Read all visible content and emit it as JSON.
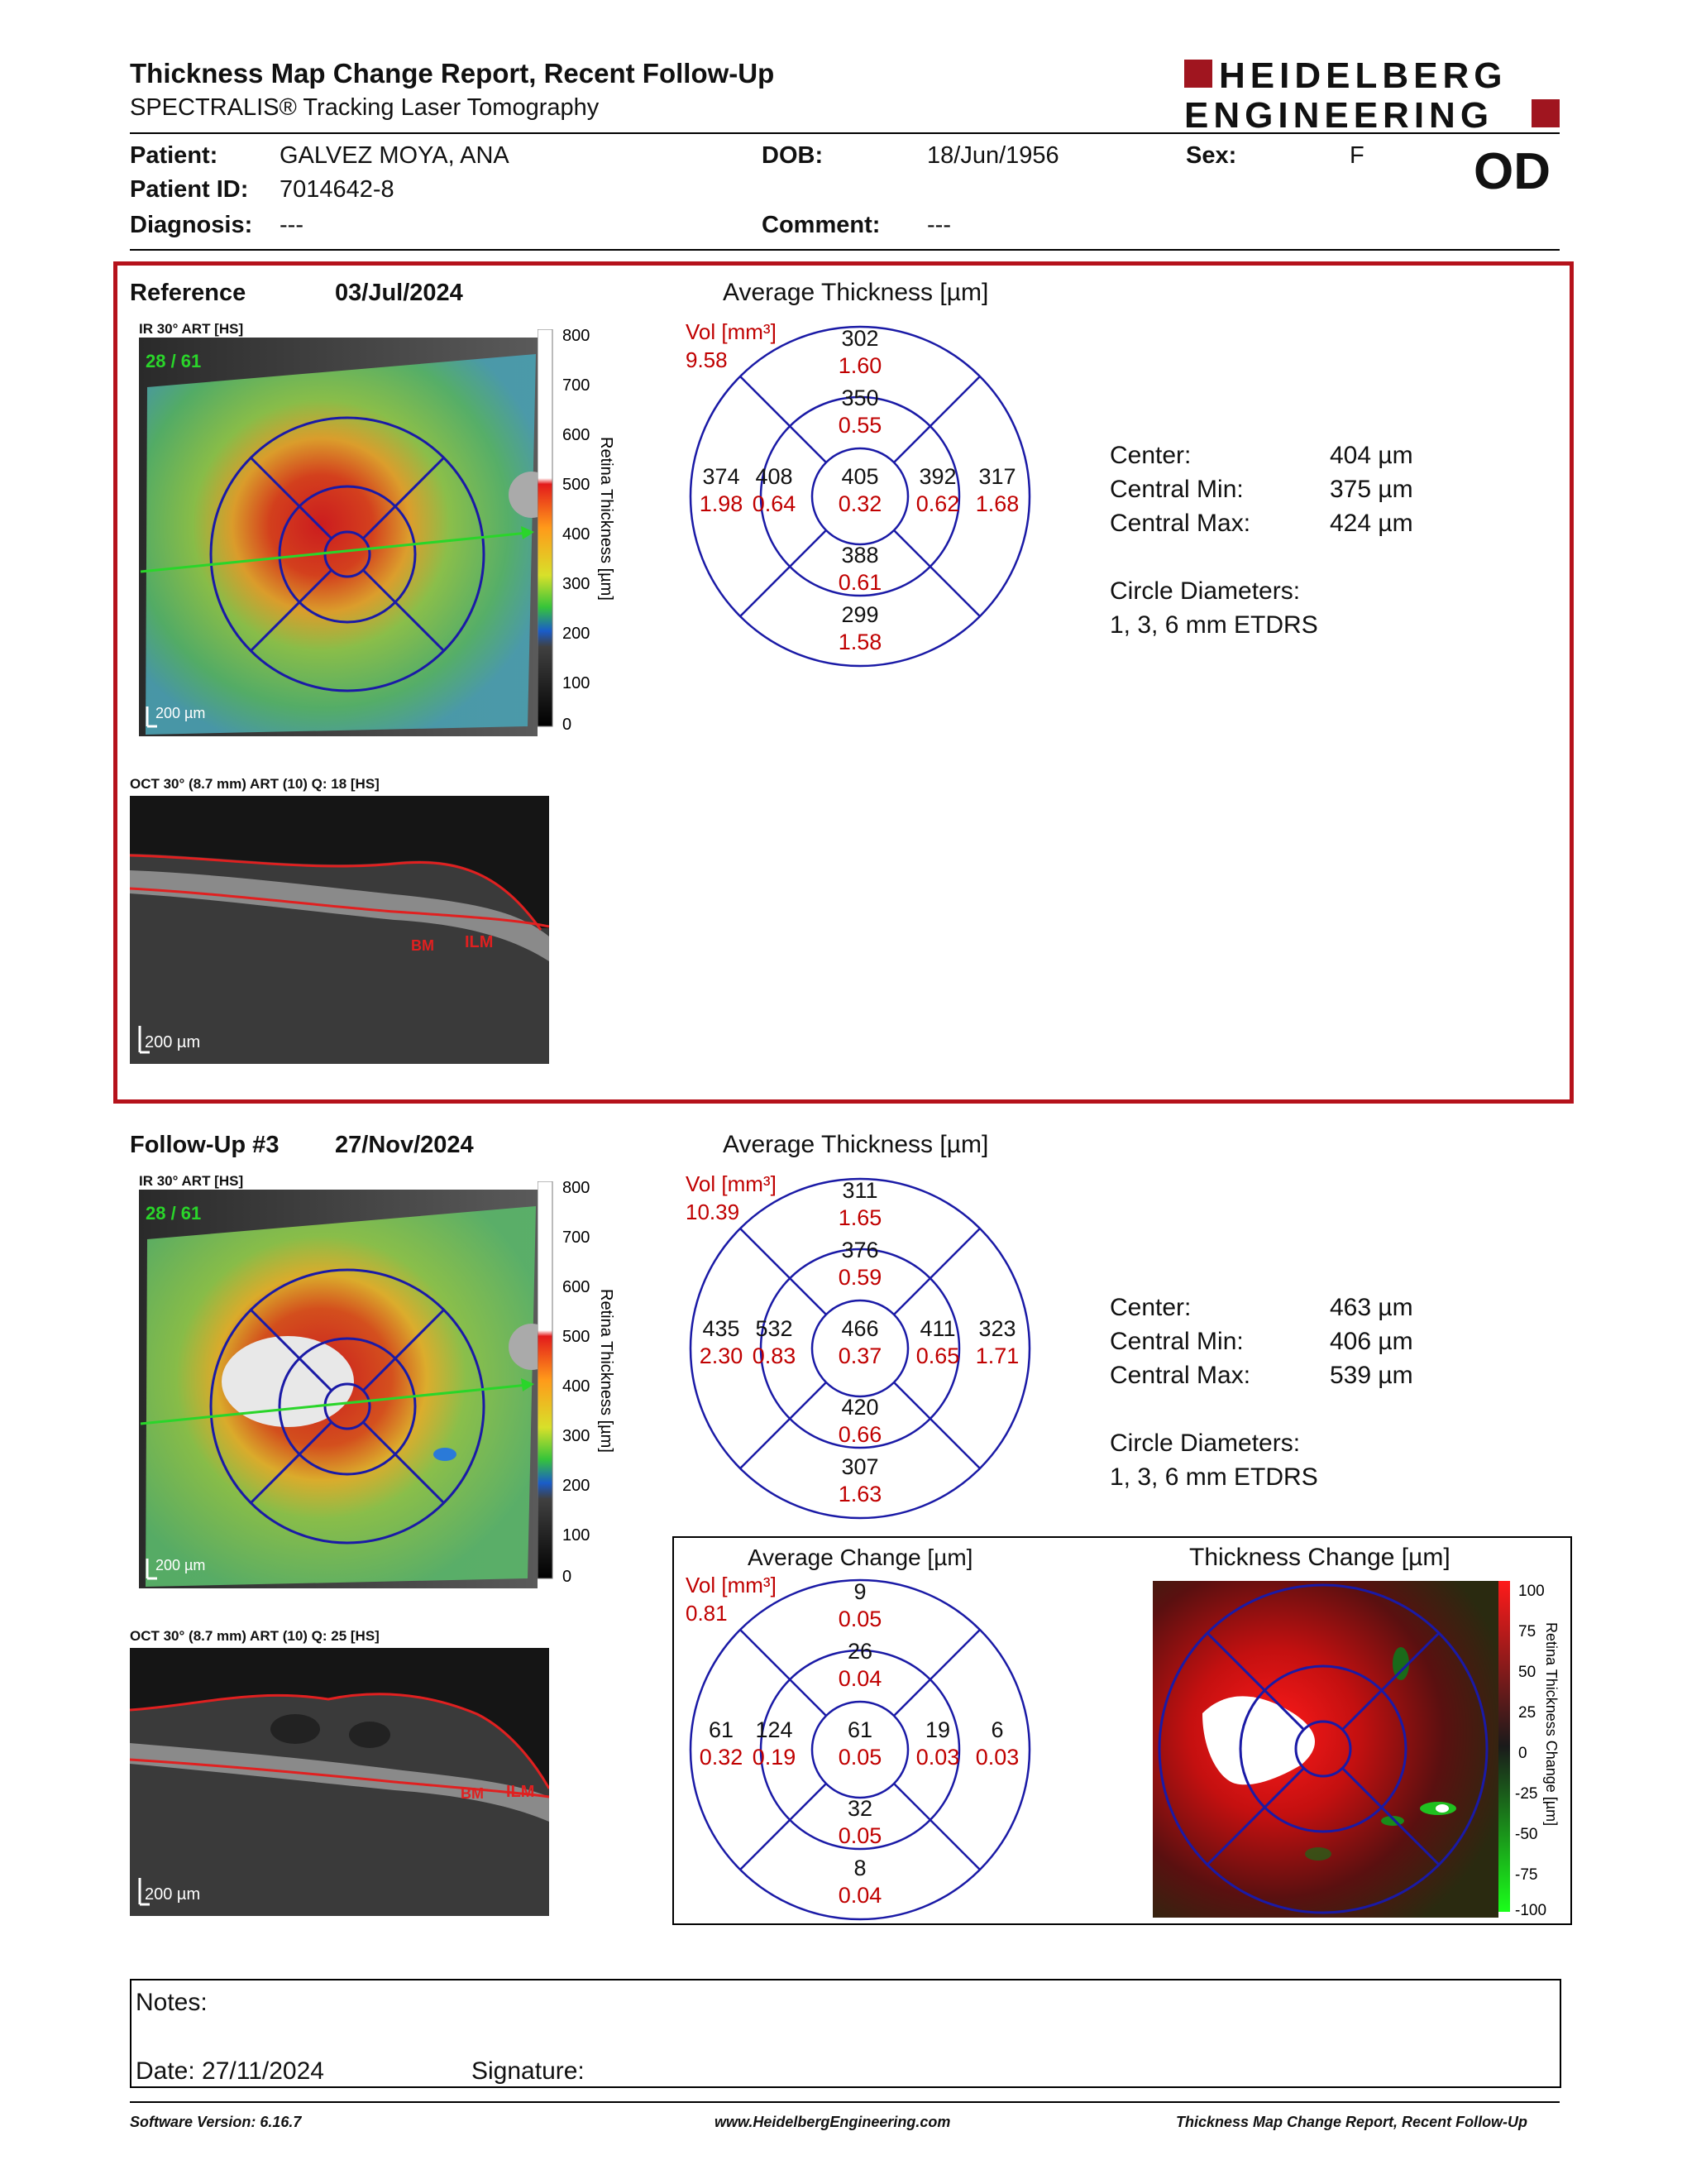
{
  "header": {
    "title": "Thickness Map Change Report, Recent Follow-Up",
    "subtitle": "SPECTRALIS® Tracking Laser Tomography",
    "logo_line1": "HEIDELBERG",
    "logo_line2": "ENGINEERING",
    "eye": "OD"
  },
  "patient": {
    "patient_label": "Patient:",
    "patient_value": "GALVEZ MOYA, ANA",
    "id_label": "Patient ID:",
    "id_value": "7014642-8",
    "diagnosis_label": "Diagnosis:",
    "diagnosis_value": "---",
    "dob_label": "DOB:",
    "dob_value": "18/Jun/1956",
    "comment_label": "Comment:",
    "comment_value": "---",
    "sex_label": "Sex:",
    "sex_value": "F"
  },
  "reference": {
    "label": "Reference",
    "date": "03/Jul/2024",
    "ir_label": "IR 30° ART [HS]",
    "ir_counter": "28 / 61",
    "scale": "200 µm",
    "oct_label": "OCT 30° (8.7 mm) ART (10) Q: 18 [HS]",
    "oct_scale": "200 µm",
    "avg_title": "Average Thickness [µm]",
    "vol_label": "Vol [mm³]",
    "vol_total": "9.58",
    "grid": {
      "top_outer": [
        "302",
        "1.60"
      ],
      "top_inner": [
        "350",
        "0.55"
      ],
      "left_outer": [
        "374",
        "1.98"
      ],
      "left_inner": [
        "408",
        "0.64"
      ],
      "center": [
        "405",
        "0.32"
      ],
      "right_inner": [
        "392",
        "0.62"
      ],
      "right_outer": [
        "317",
        "1.68"
      ],
      "bottom_inner": [
        "388",
        "0.61"
      ],
      "bottom_outer": [
        "299",
        "1.58"
      ]
    },
    "stats": {
      "center_label": "Center:",
      "center_value": "404 µm",
      "min_label": "Central Min:",
      "min_value": "375 µm",
      "max_label": "Central Max:",
      "max_value": "424 µm",
      "circle_label": "Circle Diameters:",
      "circle_value": "1, 3, 6 mm ETDRS"
    }
  },
  "followup": {
    "label": "Follow-Up #3",
    "date": "27/Nov/2024",
    "ir_label": "IR 30° ART [HS]",
    "ir_counter": "28 / 61",
    "scale": "200 µm",
    "oct_label": "OCT 30° (8.7 mm) ART (10) Q: 25 [HS]",
    "oct_scale": "200 µm",
    "avg_title": "Average Thickness [µm]",
    "vol_label": "Vol [mm³]",
    "vol_total": "10.39",
    "grid": {
      "top_outer": [
        "311",
        "1.65"
      ],
      "top_inner": [
        "376",
        "0.59"
      ],
      "left_outer": [
        "435",
        "2.30"
      ],
      "left_inner": [
        "532",
        "0.83"
      ],
      "center": [
        "466",
        "0.37"
      ],
      "right_inner": [
        "411",
        "0.65"
      ],
      "right_outer": [
        "323",
        "1.71"
      ],
      "bottom_inner": [
        "420",
        "0.66"
      ],
      "bottom_outer": [
        "307",
        "1.63"
      ]
    },
    "stats": {
      "center_label": "Center:",
      "center_value": "463 µm",
      "min_label": "Central Min:",
      "min_value": "406 µm",
      "max_label": "Central Max:",
      "max_value": "539 µm",
      "circle_label": "Circle Diameters:",
      "circle_value": "1, 3, 6 mm ETDRS"
    }
  },
  "change": {
    "avg_title": "Average Change [µm]",
    "vol_label": "Vol [mm³]",
    "vol_total": "0.81",
    "grid": {
      "top_outer": [
        "9",
        "0.05"
      ],
      "top_inner": [
        "26",
        "0.04"
      ],
      "left_outer": [
        "61",
        "0.32"
      ],
      "left_inner": [
        "124",
        "0.19"
      ],
      "center": [
        "61",
        "0.05"
      ],
      "right_inner": [
        "19",
        "0.03"
      ],
      "right_outer": [
        "6",
        "0.03"
      ],
      "bottom_inner": [
        "32",
        "0.05"
      ],
      "bottom_outer": [
        "8",
        "0.04"
      ]
    },
    "map_title": "Thickness Change [µm]",
    "colorbar_label": "Retina Thickness Change [µm]",
    "colorbar_ticks": [
      "100",
      "75",
      "50",
      "25",
      "0",
      "-25",
      "-50",
      "-75",
      "-100"
    ]
  },
  "thickness_colorbar": {
    "label": "Retina Thickness [µm]",
    "ticks": [
      "800",
      "700",
      "600",
      "500",
      "400",
      "300",
      "200",
      "100",
      "0"
    ]
  },
  "notes": {
    "notes_label": "Notes:",
    "date_label": "Date: 27/11/2024",
    "signature_label": "Signature:"
  },
  "footer": {
    "version": "Software Version: 6.16.7",
    "url": "www.HeidelbergEngineering.com",
    "report": "Thickness Map Change Report, Recent Follow-Up"
  },
  "colors": {
    "frame_red": "#b5121b",
    "value_red": "#c00000",
    "grid_blue": "#1a1aa6",
    "logo_red": "#a0151f"
  }
}
